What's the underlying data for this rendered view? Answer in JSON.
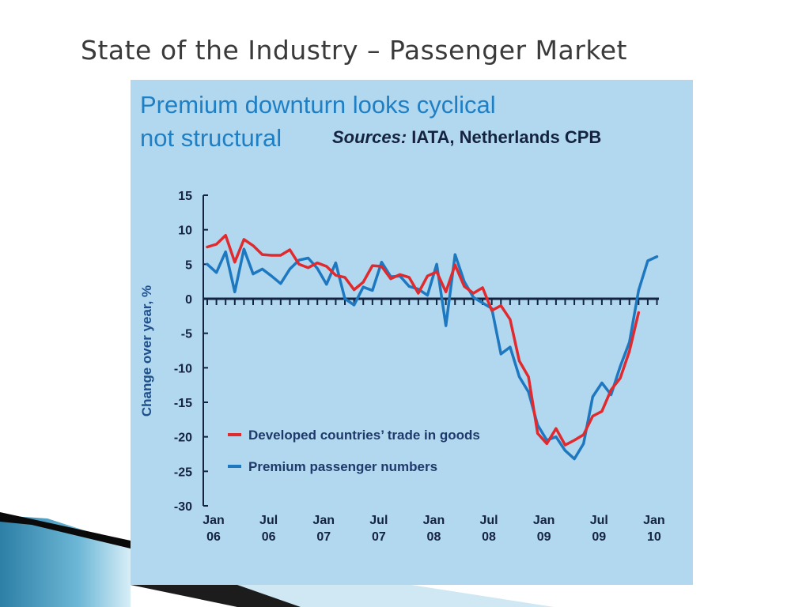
{
  "slide": {
    "title": "State of the Industry – Passenger Market"
  },
  "chart_data": {
    "type": "line",
    "title": "Premium downturn looks cyclical",
    "subtitle": "not structural",
    "sources_label": "Sources:",
    "sources_text": "IATA, Netherlands CPB",
    "ylabel": "Change over year, %",
    "ylim": [
      -30,
      15
    ],
    "yticks": [
      15,
      10,
      5,
      0,
      -5,
      -10,
      -15,
      -20,
      -25,
      -30
    ],
    "xlim": [
      0,
      49
    ],
    "xticks": [
      {
        "pos": 0,
        "line1": "Jan",
        "line2": "06"
      },
      {
        "pos": 6,
        "line1": "Jul",
        "line2": "06"
      },
      {
        "pos": 12,
        "line1": "Jan",
        "line2": "07"
      },
      {
        "pos": 18,
        "line1": "Jul",
        "line2": "07"
      },
      {
        "pos": 24,
        "line1": "Jan",
        "line2": "08"
      },
      {
        "pos": 30,
        "line1": "Jul",
        "line2": "08"
      },
      {
        "pos": 36,
        "line1": "Jan",
        "line2": "09"
      },
      {
        "pos": 42,
        "line1": "Jul",
        "line2": "09"
      },
      {
        "pos": 48,
        "line1": "Jan",
        "line2": "10"
      }
    ],
    "legend_placement": "lower-left",
    "grid": false,
    "series": [
      {
        "name": "Developed countries’ trade in goods",
        "color": "#e02a2e",
        "x": [
          0,
          1,
          2,
          3,
          4,
          5,
          6,
          7,
          8,
          9,
          10,
          11,
          12,
          13,
          14,
          15,
          16,
          17,
          18,
          19,
          20,
          21,
          22,
          23,
          24,
          25,
          26,
          27,
          28,
          29,
          30,
          31,
          32,
          33,
          34,
          35,
          36,
          37,
          38,
          39,
          40,
          41,
          42,
          43,
          44,
          45,
          46,
          47
        ],
        "values": [
          7.5,
          7.9,
          9.2,
          5.3,
          8.6,
          7.7,
          6.4,
          6.3,
          6.3,
          7.1,
          5.0,
          4.5,
          5.2,
          4.7,
          3.4,
          3.1,
          1.3,
          2.4,
          4.8,
          4.7,
          2.9,
          3.5,
          3.1,
          0.8,
          3.3,
          3.9,
          1.0,
          4.9,
          1.8,
          0.8,
          1.6,
          -1.7,
          -1.0,
          -3.0,
          -9.0,
          -11.3,
          -19.5,
          -21.0,
          -18.8,
          -21.2,
          -20.5,
          -19.7,
          -17.0,
          -16.3,
          -13.2,
          -11.5,
          -7.6,
          -2.0
        ]
      },
      {
        "name": "Premium passenger numbers",
        "color": "#1e78c0",
        "x": [
          0,
          1,
          2,
          3,
          4,
          5,
          6,
          7,
          8,
          9,
          10,
          11,
          12,
          13,
          14,
          15,
          16,
          17,
          18,
          19,
          20,
          21,
          22,
          23,
          24,
          25,
          26,
          27,
          28,
          29,
          30,
          31,
          32,
          33,
          34,
          35,
          36,
          37,
          38,
          39,
          40,
          41,
          42,
          43,
          44,
          45,
          46,
          47,
          48,
          49
        ],
        "values": [
          5.0,
          3.8,
          6.8,
          1.0,
          7.2,
          3.6,
          4.3,
          3.3,
          2.2,
          4.3,
          5.6,
          5.9,
          4.4,
          2.1,
          5.2,
          0.0,
          -0.9,
          1.7,
          1.2,
          5.3,
          3.2,
          3.3,
          1.8,
          1.4,
          0.5,
          5.0,
          -3.9,
          6.4,
          2.5,
          0.2,
          -0.6,
          -1.4,
          -8.0,
          -7.0,
          -11.3,
          -13.5,
          -18.3,
          -20.5,
          -20.0,
          -22.0,
          -23.2,
          -21.0,
          -14.2,
          -12.2,
          -13.9,
          -9.8,
          -6.3,
          1.2,
          5.5,
          6.1
        ]
      }
    ]
  }
}
